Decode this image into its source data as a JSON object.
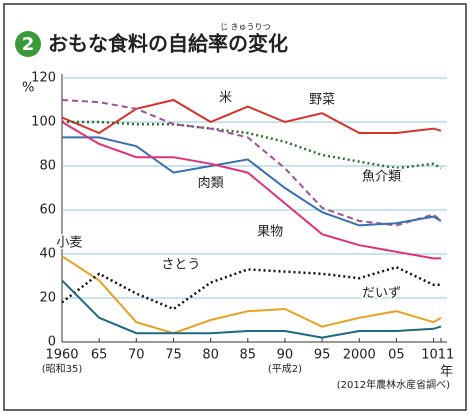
{
  "chart_data": {
    "type": "line",
    "title_number": "2",
    "title": "おもな食料の自給率の変化",
    "title_ruby": "じ きゅうりつ",
    "y_unit": "%",
    "x_unit": "年",
    "source": "(2012年農林水産省調べ)",
    "x_sublabels": [
      {
        "value": 1960,
        "label": "(昭和35)"
      },
      {
        "value": 1990,
        "label": "(平成2)"
      }
    ],
    "x": [
      1960,
      1965,
      1970,
      1975,
      1980,
      1985,
      1990,
      1995,
      2000,
      2005,
      2010,
      2011
    ],
    "xlim": [
      1960,
      2011
    ],
    "xticks": [
      1960,
      {
        "value": 1965,
        "label": "65"
      },
      {
        "value": 1970,
        "label": "70"
      },
      {
        "value": 1975,
        "label": "75"
      },
      {
        "value": 1980,
        "label": "80"
      },
      {
        "value": 1985,
        "label": "85"
      },
      {
        "value": 1990,
        "label": "90"
      },
      {
        "value": 1995,
        "label": "95"
      },
      2000,
      {
        "value": 2005,
        "label": "05"
      },
      {
        "value": 2010,
        "label": "10"
      },
      {
        "value": 2011,
        "label": "11"
      }
    ],
    "ylim": [
      0,
      120
    ],
    "yticks": [
      0,
      20,
      40,
      60,
      80,
      100,
      120
    ],
    "grid": true,
    "series": [
      {
        "name": "米",
        "color": "#d9302a",
        "style": "solid",
        "values": [
          102,
          95,
          106,
          110,
          100,
          107,
          100,
          104,
          95,
          95,
          97,
          96
        ]
      },
      {
        "name": "野菜",
        "color": "#2f6e2f",
        "style": "dotted",
        "values": [
          100,
          100,
          99,
          99,
          97,
          95,
          91,
          85,
          82,
          79,
          81,
          79
        ]
      },
      {
        "name": "魚介類",
        "color": "#a0509a",
        "style": "dashed",
        "values": [
          110,
          109,
          106,
          99,
          97,
          93,
          79,
          61,
          55,
          53,
          58,
          55
        ]
      },
      {
        "name": "肉類",
        "color": "#3a6fb0",
        "style": "solid",
        "values": [
          93,
          93,
          89,
          77,
          80,
          83,
          70,
          59,
          53,
          54,
          57,
          55
        ]
      },
      {
        "name": "果物",
        "color": "#e0307a",
        "style": "solid",
        "values": [
          100,
          90,
          84,
          84,
          81,
          77,
          63,
          49,
          44,
          41,
          38,
          38
        ]
      },
      {
        "name": "小麦",
        "color": "#e8a020",
        "style": "solid",
        "values": [
          39,
          28,
          9,
          4,
          10,
          14,
          15,
          7,
          11,
          14,
          9,
          11
        ]
      },
      {
        "name": "さとう",
        "color": "#111111",
        "style": "dotted",
        "values": [
          18,
          31,
          22,
          15,
          27,
          33,
          32,
          31,
          29,
          34,
          26,
          26
        ]
      },
      {
        "name": "だいず",
        "color": "#1a6a80",
        "style": "solid",
        "values": [
          28,
          11,
          4,
          4,
          4,
          5,
          5,
          2,
          5,
          5,
          6,
          7
        ]
      }
    ]
  }
}
